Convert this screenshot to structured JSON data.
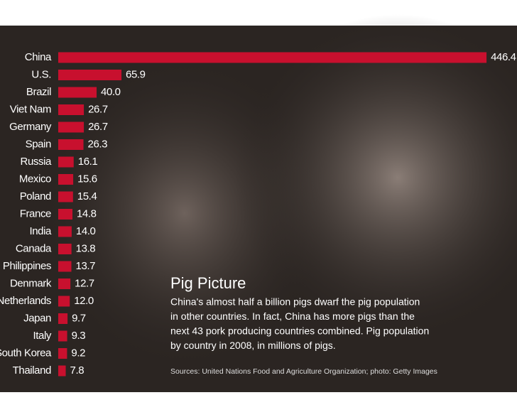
{
  "chart_data": {
    "type": "bar",
    "orientation": "horizontal",
    "color": "#c8102e",
    "categories": [
      "China",
      "U.S.",
      "Brazil",
      "Viet Nam",
      "Germany",
      "Spain",
      "Russia",
      "Mexico",
      "Poland",
      "France",
      "India",
      "Canada",
      "Philippines",
      "Denmark",
      "Netherlands",
      "Japan",
      "Italy",
      "South Korea",
      "Thailand"
    ],
    "values": [
      446.4,
      65.9,
      40.0,
      26.7,
      26.7,
      26.3,
      16.1,
      15.6,
      15.4,
      14.8,
      14.0,
      13.8,
      13.7,
      12.7,
      12.0,
      9.7,
      9.3,
      9.2,
      7.8
    ],
    "value_labels": [
      "446.4",
      "65.9",
      "40.0",
      "26.7",
      "26.7",
      "26.3",
      "16.1",
      "15.6",
      "15.4",
      "14.8",
      "14.0",
      "13.8",
      "13.7",
      "12.7",
      "12.0",
      "9.7",
      "9.3",
      "9.2",
      "7.8"
    ],
    "title": "Pig Picture",
    "description_lines": [
      "China's almost half a billion pigs dwarf the pig population",
      "in other countries. In fact, China has more pigs than the",
      "next 43 pork producing countries combined. Pig population",
      "by country in 2008, in millions of pigs."
    ],
    "source": "Sources: United Nations Food and Agriculture Organization; photo: Getty Images"
  }
}
